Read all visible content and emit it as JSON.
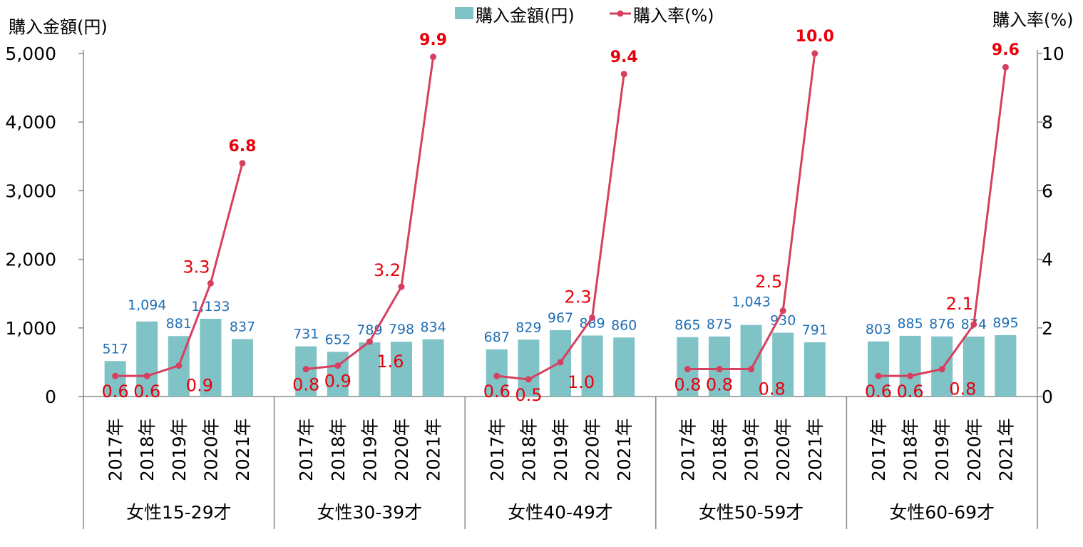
{
  "chart_data": {
    "type": "bar+line",
    "left_axis_title": "購入金額(円)",
    "right_axis_title": "購入率(%)",
    "legend": {
      "placement": "top-center",
      "entries": [
        "購入金額(円)",
        "購入率(%)"
      ]
    },
    "left_ylim": [
      0,
      5000
    ],
    "left_ticks": [
      "0",
      "1,000",
      "2,000",
      "3,000",
      "4,000",
      "5,000"
    ],
    "right_ylim": [
      0,
      10
    ],
    "right_ticks": [
      "0",
      "2",
      "4",
      "6",
      "8",
      "10"
    ],
    "years": [
      "2017年",
      "2018年",
      "2019年",
      "2020年",
      "2021年"
    ],
    "groups": [
      {
        "name": "女性15-29才",
        "amount": [
          517,
          1094,
          881,
          1133,
          837
        ],
        "amount_labels": [
          "517",
          "1,094",
          "881",
          "1,133",
          "837"
        ],
        "rate": [
          0.6,
          0.6,
          0.9,
          3.3,
          6.8
        ],
        "rate_labels": [
          "0.6",
          "0.6",
          "0.9",
          "3.3",
          "6.8"
        ]
      },
      {
        "name": "女性30-39才",
        "amount": [
          731,
          652,
          789,
          798,
          834
        ],
        "amount_labels": [
          "731",
          "652",
          "789",
          "798",
          "834"
        ],
        "rate": [
          0.8,
          0.9,
          1.6,
          3.2,
          9.9
        ],
        "rate_labels": [
          "0.8",
          "0.9",
          "1.6",
          "3.2",
          "9.9"
        ]
      },
      {
        "name": "女性40-49才",
        "amount": [
          687,
          829,
          967,
          889,
          860
        ],
        "amount_labels": [
          "687",
          "829",
          "967",
          "889",
          "860"
        ],
        "rate": [
          0.6,
          0.5,
          1.0,
          2.3,
          9.4
        ],
        "rate_labels": [
          "0.6",
          "0.5",
          "1.0",
          "2.3",
          "9.4"
        ]
      },
      {
        "name": "女性50-59才",
        "amount": [
          865,
          875,
          1043,
          930,
          791
        ],
        "amount_labels": [
          "865",
          "875",
          "1,043",
          "930",
          "791"
        ],
        "rate": [
          0.8,
          0.8,
          0.8,
          2.5,
          10.0
        ],
        "rate_labels": [
          "0.8",
          "0.8",
          "0.8",
          "2.5",
          "10.0"
        ]
      },
      {
        "name": "女性60-69才",
        "amount": [
          803,
          885,
          876,
          874,
          895
        ],
        "amount_labels": [
          "803",
          "885",
          "876",
          "874",
          "895"
        ],
        "rate": [
          0.6,
          0.6,
          0.8,
          2.1,
          9.6
        ],
        "rate_labels": [
          "0.6",
          "0.6",
          "0.8",
          "2.1",
          "9.6"
        ]
      }
    ],
    "colors": {
      "bar": "#7fc3c6",
      "line": "#d6405e",
      "amount_label": "#1f6fb5",
      "rate_label": "#e8000b"
    }
  }
}
